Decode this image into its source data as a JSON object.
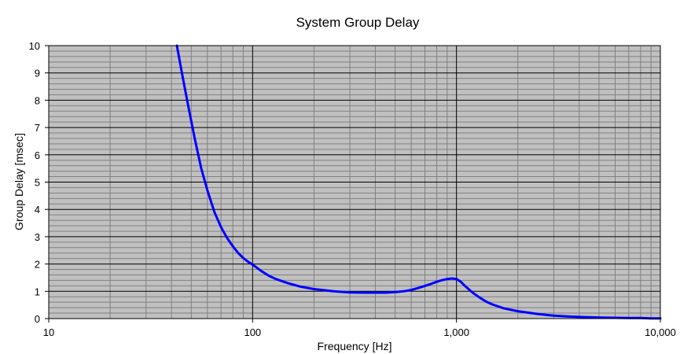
{
  "chart_data": {
    "type": "line",
    "title": "System Group Delay",
    "xlabel": "Frequency [Hz]",
    "ylabel": "Group Delay [msec]",
    "x_scale": "log",
    "xlim": [
      10,
      10000
    ],
    "ylim": [
      0,
      10
    ],
    "x_ticks": [
      10,
      100,
      1000,
      10000
    ],
    "x_tick_labels": [
      "10",
      "100",
      "1,000",
      "10,000"
    ],
    "y_ticks": [
      0,
      1,
      2,
      3,
      4,
      5,
      6,
      7,
      8,
      9,
      10
    ],
    "y_tick_labels": [
      "0",
      "1",
      "2",
      "3",
      "4",
      "5",
      "6",
      "7",
      "8",
      "9",
      "10"
    ],
    "grid": true,
    "legend": "none",
    "colors": {
      "plot_background": "#c0c0c0",
      "major_grid": "#000000",
      "minor_grid": "#808080",
      "line": "#0000ff"
    },
    "series": [
      {
        "x": [
          42.5,
          45,
          48,
          52,
          56,
          60,
          65,
          70,
          75,
          80,
          85,
          90,
          95,
          100,
          110,
          120,
          130,
          150,
          170,
          200,
          250,
          300,
          350,
          400,
          450,
          500,
          550,
          600,
          650,
          700,
          750,
          800,
          850,
          900,
          950,
          1000,
          1050,
          1100,
          1200,
          1300,
          1400,
          1500,
          1700,
          2000,
          2500,
          3000,
          3500,
          4000,
          5000,
          6000,
          7000,
          8000,
          9000,
          10000
        ],
        "y": [
          10.0,
          9.0,
          7.9,
          6.6,
          5.5,
          4.7,
          3.9,
          3.35,
          2.95,
          2.65,
          2.4,
          2.22,
          2.08,
          1.98,
          1.75,
          1.57,
          1.45,
          1.29,
          1.18,
          1.08,
          1.0,
          0.96,
          0.95,
          0.95,
          0.95,
          0.97,
          1.0,
          1.05,
          1.12,
          1.2,
          1.27,
          1.35,
          1.41,
          1.45,
          1.47,
          1.45,
          1.35,
          1.2,
          0.95,
          0.77,
          0.62,
          0.52,
          0.38,
          0.27,
          0.17,
          0.11,
          0.08,
          0.06,
          0.04,
          0.03,
          0.02,
          0.02,
          0.01,
          0.01
        ]
      }
    ]
  }
}
